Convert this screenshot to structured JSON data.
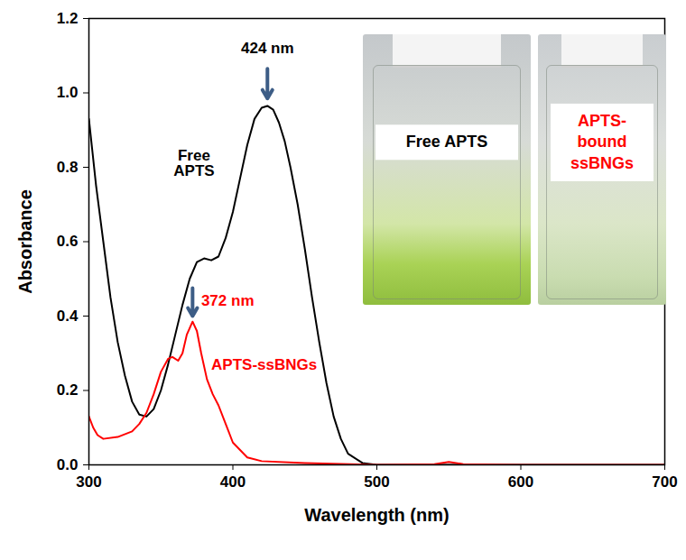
{
  "chart_data": {
    "type": "line",
    "x_label": "Wavelength (nm)",
    "y_label": "Absorbance",
    "xlim": [
      300,
      700
    ],
    "xticks": [
      300,
      400,
      500,
      600,
      700
    ],
    "ylim": [
      0,
      1.2
    ],
    "yticks": [
      {
        "value": 0,
        "label": "0.0"
      },
      0.2,
      0.4,
      0.6,
      0.8,
      {
        "value": 1,
        "label": "1.0"
      },
      1.2
    ],
    "grid": false,
    "series": [
      {
        "name": "Free APTS",
        "color": "#000000",
        "x": [
          300,
          305,
          310,
          315,
          320,
          325,
          330,
          335,
          340,
          345,
          350,
          355,
          360,
          365,
          370,
          375,
          380,
          385,
          390,
          395,
          400,
          405,
          410,
          415,
          420,
          424,
          428,
          432,
          436,
          440,
          445,
          450,
          455,
          460,
          465,
          470,
          475,
          480,
          490,
          500,
          550,
          600,
          700
        ],
        "values": [
          0.93,
          0.75,
          0.6,
          0.45,
          0.33,
          0.24,
          0.17,
          0.135,
          0.13,
          0.15,
          0.2,
          0.27,
          0.35,
          0.43,
          0.5,
          0.545,
          0.555,
          0.55,
          0.56,
          0.61,
          0.68,
          0.77,
          0.86,
          0.93,
          0.96,
          0.965,
          0.955,
          0.92,
          0.87,
          0.8,
          0.7,
          0.58,
          0.45,
          0.33,
          0.22,
          0.13,
          0.07,
          0.03,
          0.005,
          0,
          0,
          0,
          0
        ]
      },
      {
        "name": "APTS-ssBNGs",
        "color": "#ff0000",
        "x": [
          300,
          303,
          306,
          310,
          320,
          330,
          335,
          340,
          345,
          350,
          355,
          358,
          362,
          365,
          368,
          372,
          375,
          378,
          382,
          386,
          390,
          395,
          400,
          410,
          420,
          450,
          500,
          540,
          550,
          560,
          600,
          700
        ],
        "values": [
          0.13,
          0.1,
          0.08,
          0.07,
          0.075,
          0.09,
          0.11,
          0.14,
          0.19,
          0.25,
          0.285,
          0.29,
          0.28,
          0.3,
          0.35,
          0.385,
          0.36,
          0.3,
          0.23,
          0.19,
          0.16,
          0.11,
          0.06,
          0.02,
          0.01,
          0.005,
          0,
          0.002,
          0.008,
          0.002,
          0,
          0
        ]
      }
    ],
    "annotations": [
      {
        "text": "424 nm",
        "x": 424,
        "y": 0.965,
        "color": "#000000"
      },
      {
        "text": "372 nm",
        "x": 372,
        "y": 0.385,
        "color": "#ff0000"
      }
    ],
    "insets": [
      {
        "label": "Free APTS",
        "color": "#000000"
      },
      {
        "label": "APTS-bound ssBNGs",
        "color": "#ff0000"
      }
    ]
  }
}
